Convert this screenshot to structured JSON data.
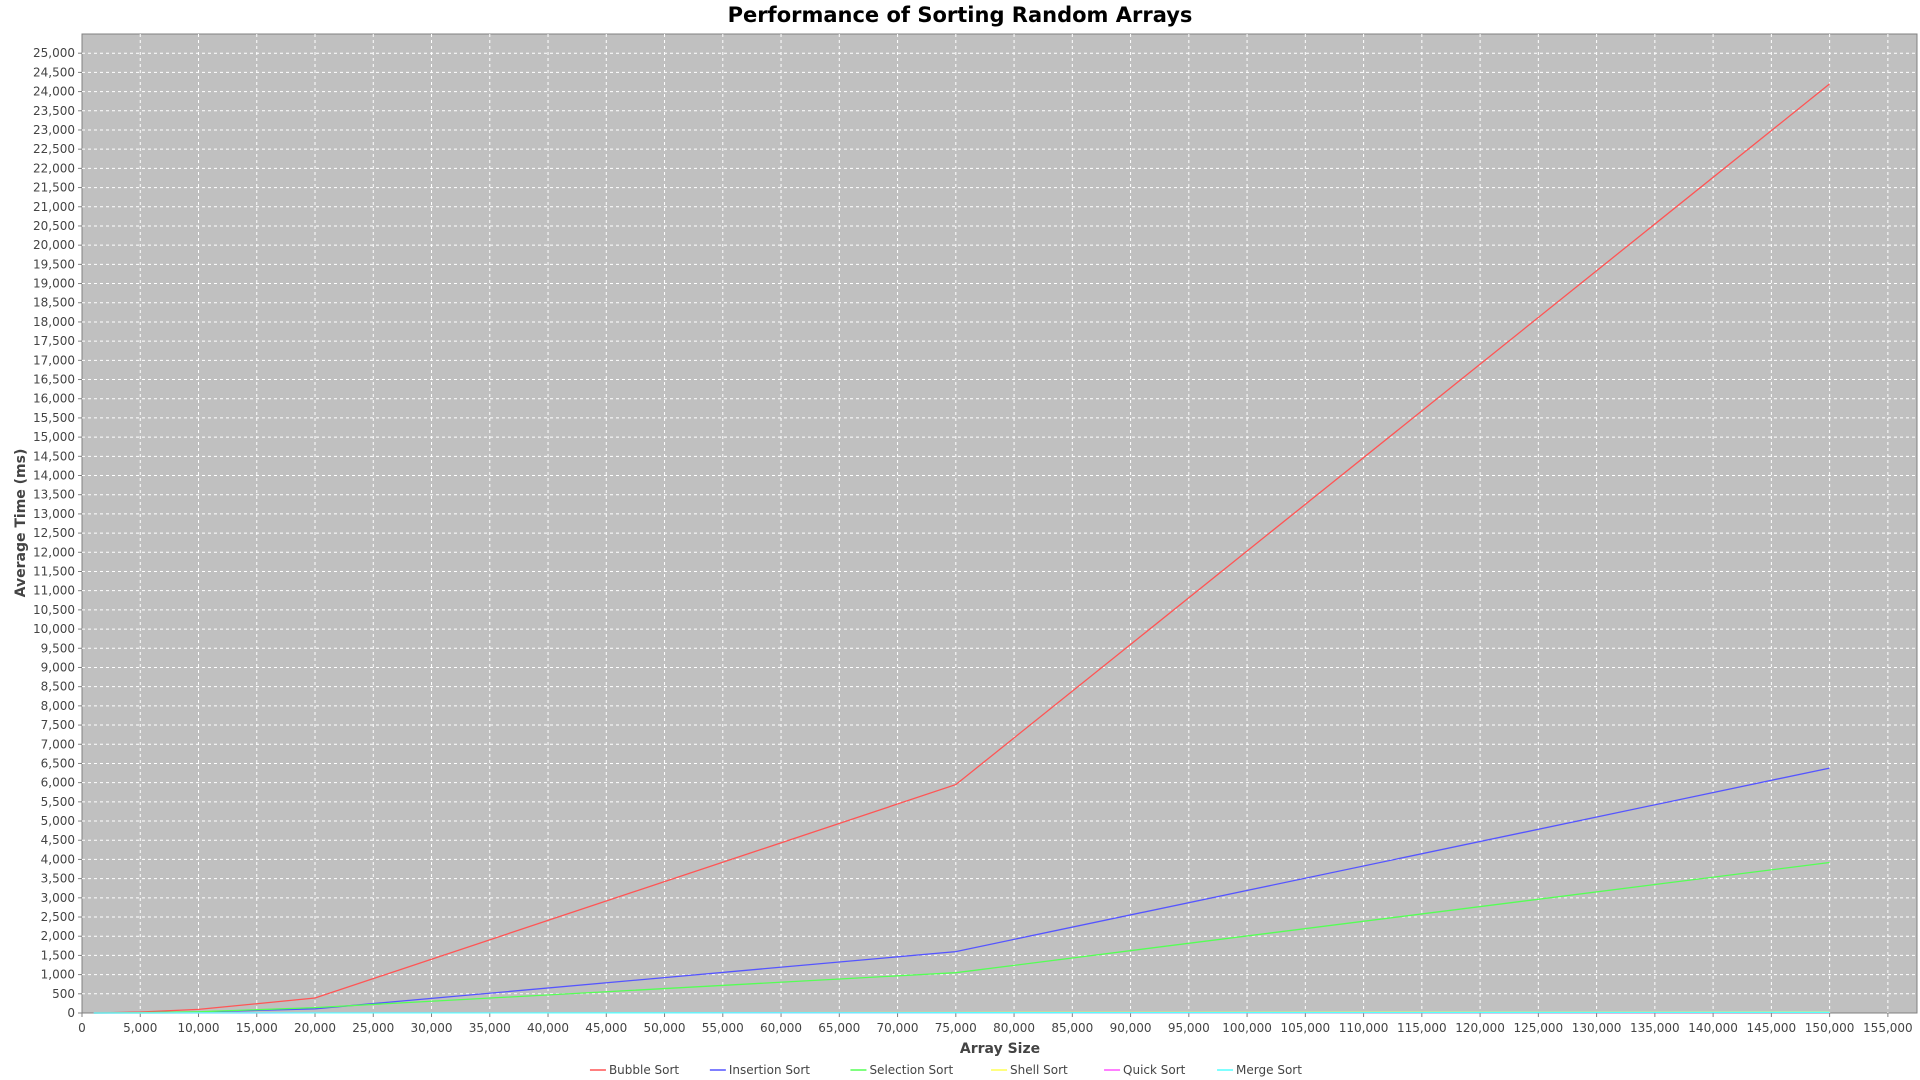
{
  "chart_data": {
    "type": "line",
    "title": "Performance of Sorting Random Arrays",
    "xlabel": "Array Size",
    "ylabel": "Average Time (ms)",
    "xlim": [
      0,
      157500
    ],
    "ylim": [
      0,
      25500
    ],
    "x_tick_step": 5000,
    "y_tick_step": 500,
    "grid": true,
    "legend_placement": "bottom",
    "plot_background": "#c0c0c0",
    "x": [
      1000,
      5000,
      10000,
      20000,
      75000,
      150000
    ],
    "series": [
      {
        "name": "Bubble Sort",
        "color": "#ff5555",
        "values": [
          1,
          25,
          95,
          390,
          5950,
          24200
        ]
      },
      {
        "name": "Insertion Sort",
        "color": "#5555ff",
        "values": [
          0,
          5,
          25,
          110,
          1600,
          6380
        ]
      },
      {
        "name": "Selection Sort",
        "color": "#55ff55",
        "values": [
          0,
          8,
          30,
          140,
          1050,
          3920
        ]
      },
      {
        "name": "Shell Sort",
        "color": "#ffff55",
        "values": [
          0,
          1,
          2,
          3,
          12,
          28
        ]
      },
      {
        "name": "Quick Sort",
        "color": "#ff55ff",
        "values": [
          0,
          0,
          1,
          2,
          6,
          14
        ]
      },
      {
        "name": "Merge Sort",
        "color": "#55ffff",
        "values": [
          0,
          1,
          2,
          3,
          9,
          19
        ]
      }
    ]
  }
}
